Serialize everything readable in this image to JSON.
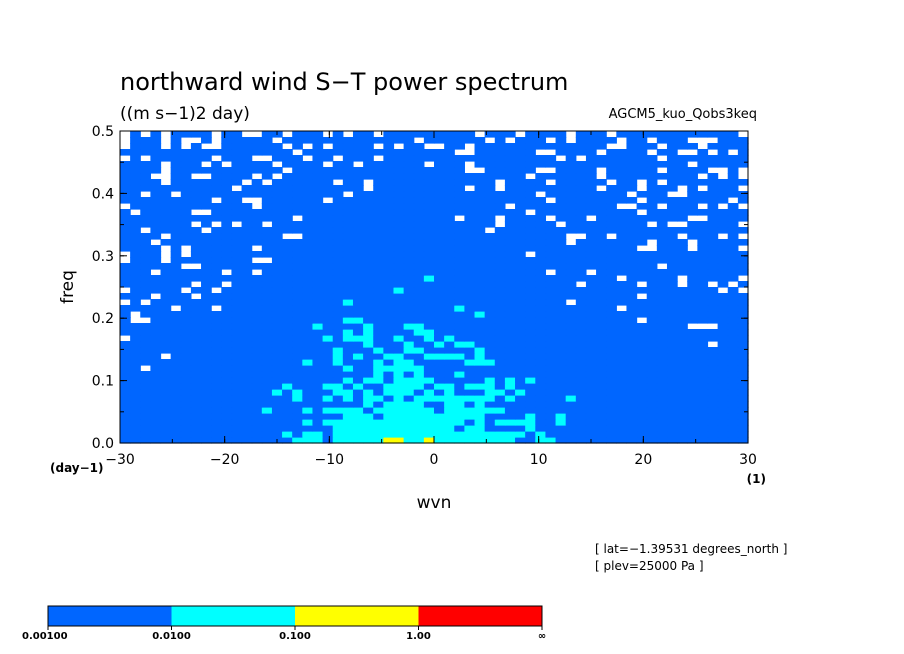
{
  "chart_data": {
    "type": "heatmap",
    "title": "northward wind S−T power spectrum",
    "units": "((m s−1)2 day)",
    "experiment": "AGCM5_kuo_Qobs3keq",
    "xlabel": "wvn",
    "ylabel": "freq",
    "x_unit": "(1)",
    "y_unit": "(day−1)",
    "xlim": [
      -30,
      30
    ],
    "ylim": [
      0,
      0.5
    ],
    "x_ticks": [
      "−30",
      "−20",
      "−10",
      "0",
      "10",
      "20",
      "30"
    ],
    "x_tick_values": [
      -30,
      -20,
      -10,
      0,
      10,
      20,
      30
    ],
    "y_ticks": [
      "0.0",
      "0.1",
      "0.2",
      "0.3",
      "0.4",
      "0.5"
    ],
    "y_tick_values": [
      0,
      0.1,
      0.2,
      0.3,
      0.4,
      0.5
    ],
    "info": [
      "[ lat=−1.39531 degrees_north ]",
      "[ plev=25000 Pa ]"
    ],
    "colorbar": {
      "labels": [
        "0.00100",
        "0.0100",
        "0.100",
        "1.00",
        "∞"
      ],
      "colors": [
        "#0066ff",
        "#00ffff",
        "#ffff00",
        "#ff0000"
      ]
    },
    "background_color": "#ffffff"
  }
}
